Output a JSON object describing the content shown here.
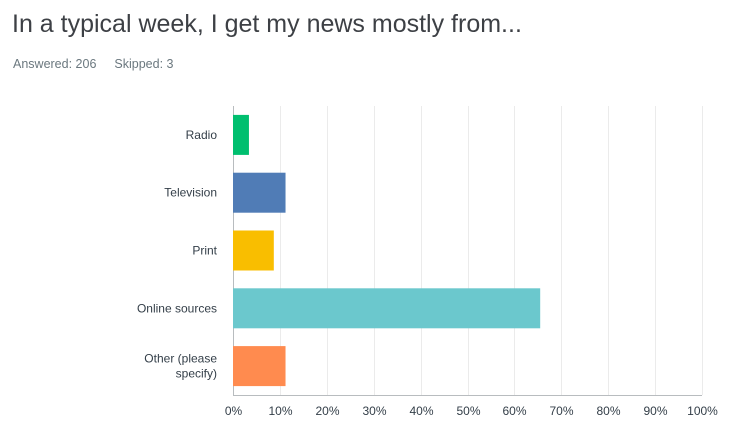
{
  "question": {
    "title": "In a typical week, I get my news mostly from...",
    "answered_label": "Answered:",
    "answered_value": "206",
    "skipped_label": "Skipped:",
    "skipped_value": "3"
  },
  "chart_data": {
    "type": "bar",
    "orientation": "horizontal",
    "categories": [
      "Radio",
      "Television",
      "Print",
      "Online sources",
      "Other (please specify)"
    ],
    "values": [
      3.4,
      11.2,
      8.7,
      65.5,
      11.2
    ],
    "value_unit": "%",
    "xlim": [
      0,
      100
    ],
    "xticks": [
      "0%",
      "10%",
      "20%",
      "30%",
      "40%",
      "50%",
      "60%",
      "70%",
      "80%",
      "90%",
      "100%"
    ],
    "colors": [
      "#00bf6f",
      "#507cb6",
      "#f9be00",
      "#6bc8cd",
      "#ff8b4f"
    ],
    "grid": true
  }
}
